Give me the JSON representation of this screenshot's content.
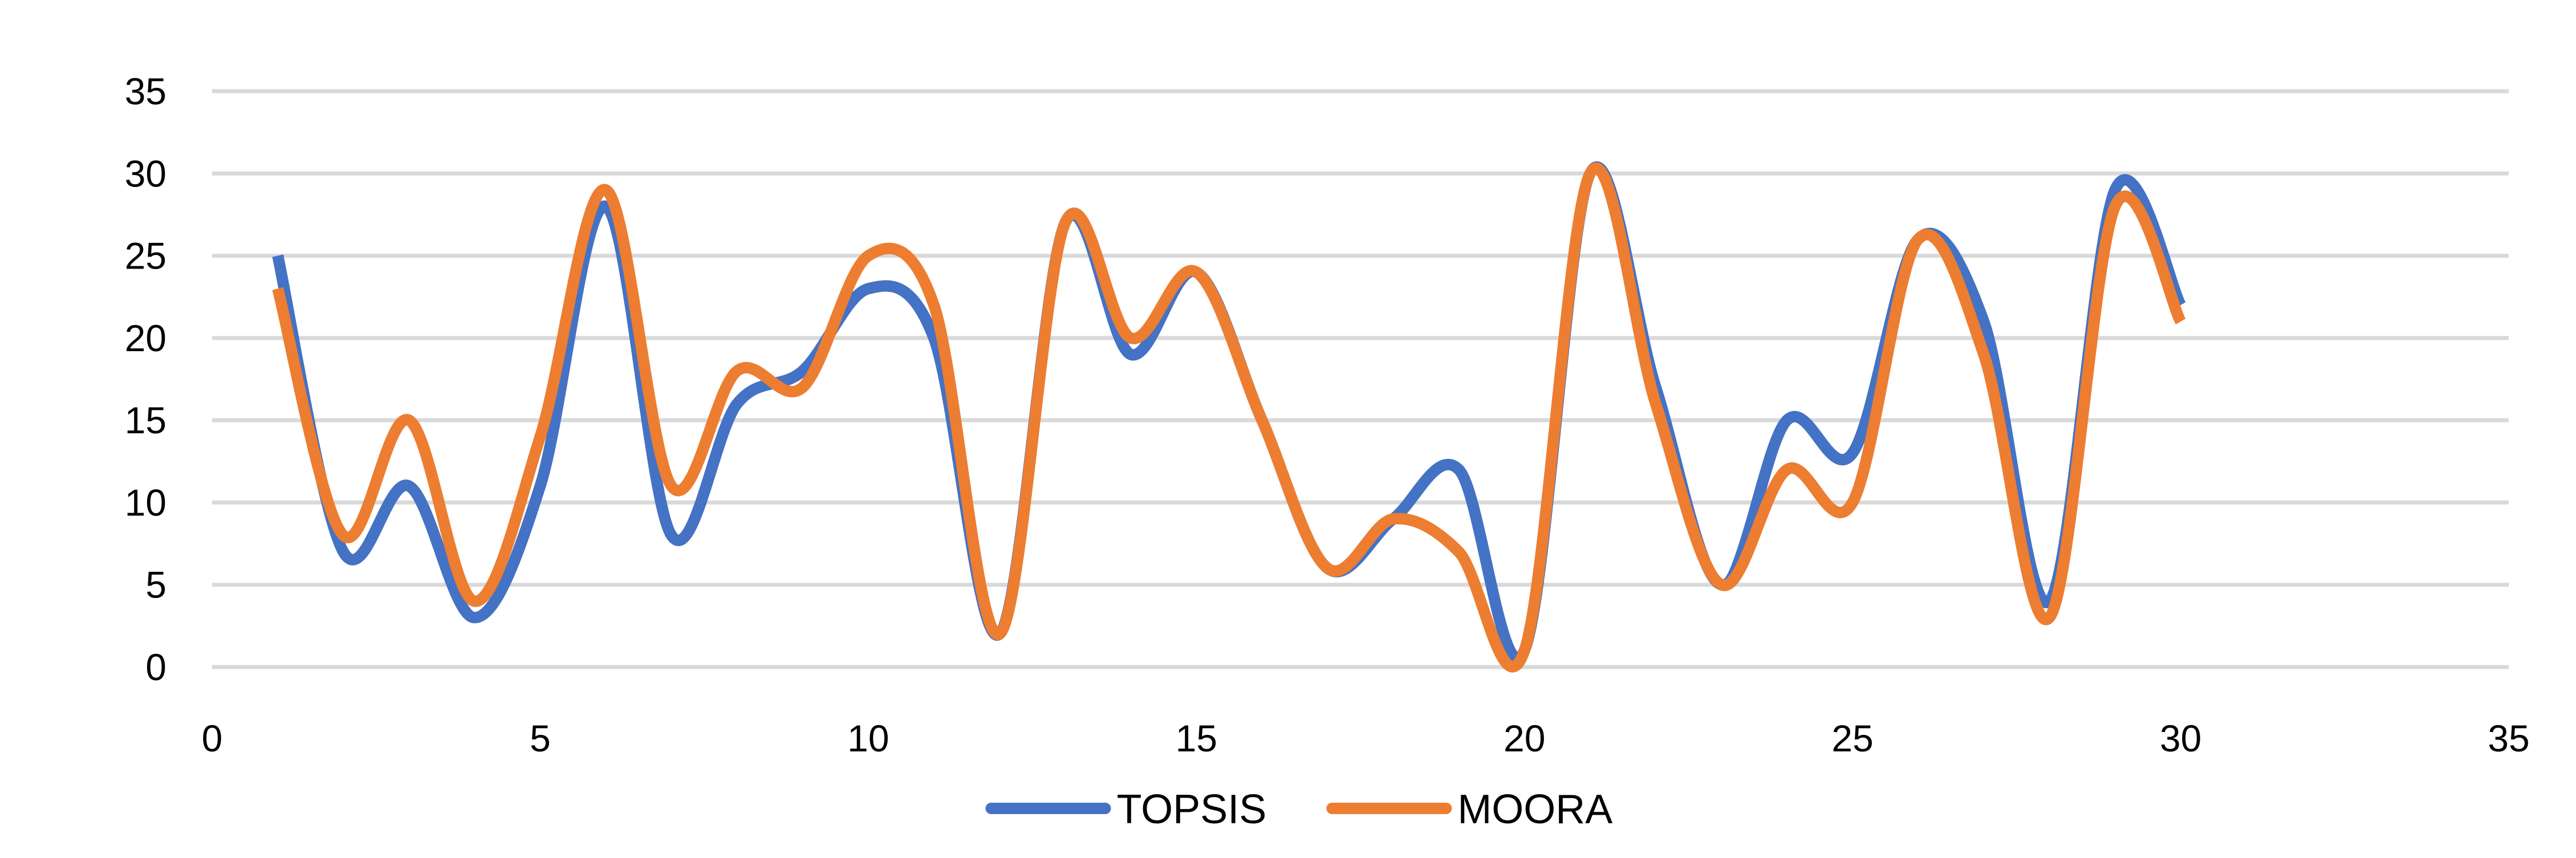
{
  "chart_data": {
    "type": "scatter",
    "style": "smoothed lines",
    "xlim": [
      0,
      35
    ],
    "ylim": [
      0,
      35
    ],
    "x_ticks": [
      0,
      5,
      10,
      15,
      20,
      25,
      30,
      35
    ],
    "y_ticks": [
      0,
      5,
      10,
      15,
      20,
      25,
      30,
      35
    ],
    "grid": "horizontal",
    "legend_position": "bottom",
    "x": [
      1,
      2,
      3,
      4,
      5,
      6,
      7,
      8,
      9,
      10,
      11,
      12,
      13,
      14,
      15,
      16,
      17,
      18,
      19,
      20,
      21,
      22,
      23,
      24,
      25,
      26,
      27,
      28,
      29,
      30
    ],
    "series": [
      {
        "name": "TOPSIS",
        "color": "#4472C4",
        "values": [
          25,
          7,
          11,
          3,
          11,
          28,
          8,
          16,
          18,
          23,
          20,
          2,
          27,
          19,
          24,
          15,
          6,
          9,
          12,
          1,
          30,
          17,
          5,
          15,
          13,
          26,
          21,
          4,
          29,
          22
        ]
      },
      {
        "name": "MOORA",
        "color": "#ED7D31",
        "values": [
          23,
          8,
          15,
          4,
          14,
          29,
          11,
          18,
          17,
          25,
          22,
          2,
          27,
          20,
          24,
          15,
          6,
          9,
          7,
          1,
          30,
          16,
          5,
          12,
          10,
          26,
          19,
          3,
          28,
          21
        ]
      }
    ]
  }
}
